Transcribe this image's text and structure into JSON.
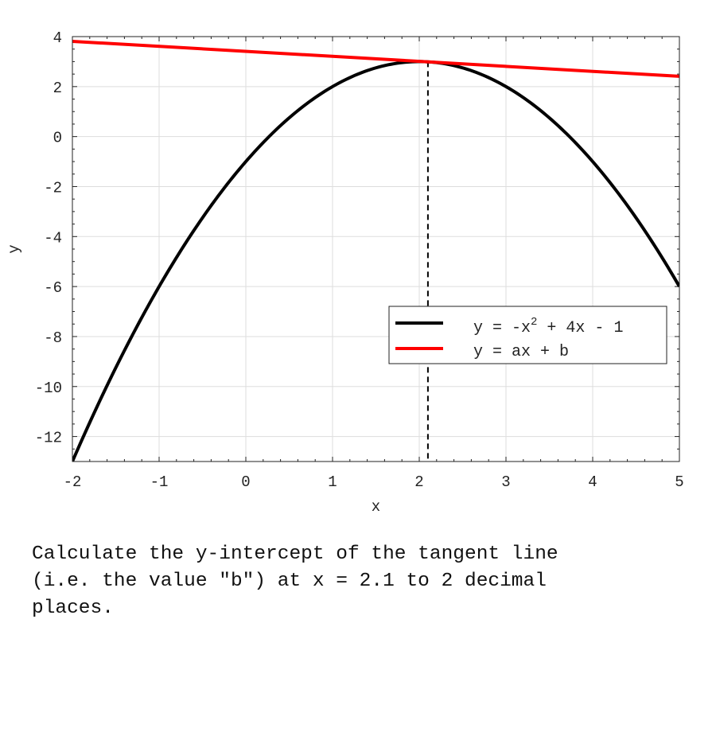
{
  "chart_data": {
    "type": "line",
    "title": "",
    "xlabel": "x",
    "ylabel": "y",
    "xlim": [
      -2,
      5
    ],
    "ylim": [
      -13,
      4
    ],
    "xticks": [
      "-2",
      "-1",
      "0",
      "1",
      "2",
      "3",
      "4",
      "5"
    ],
    "yticks": [
      "4",
      "2",
      "0",
      "-2",
      "-4",
      "-6",
      "-8",
      "-10",
      "-12"
    ],
    "xtick_values": [
      -2,
      -1,
      0,
      1,
      2,
      3,
      4,
      5
    ],
    "ytick_values": [
      4,
      2,
      0,
      -2,
      -4,
      -6,
      -8,
      -10,
      -12
    ],
    "grid": true,
    "legend_position": "center-right",
    "series": [
      {
        "name": "y = -x² + 4x - 1",
        "legend_base": "y = -x",
        "legend_sup": "2",
        "legend_rest": " + 4x - 1",
        "color": "#000000",
        "x": [
          -2,
          -1.5,
          -1,
          -0.5,
          0,
          0.5,
          1,
          1.5,
          2,
          2.5,
          3,
          3.5,
          4,
          4.5,
          5
        ],
        "y": [
          -13,
          -9.25,
          -6,
          -3.25,
          -1,
          0.75,
          2,
          2.75,
          3,
          2.75,
          2,
          0.75,
          -1,
          -3.25,
          -6
        ]
      },
      {
        "name": "y = ax + b",
        "color": "#ff0000",
        "x": [
          -2,
          5
        ],
        "y": [
          3.81,
          2.41
        ]
      }
    ],
    "annotations": [
      {
        "type": "vline",
        "x": 2.1,
        "style": "dashed",
        "color": "#000000"
      }
    ]
  },
  "question": {
    "text": "Calculate the y-intercept of the tangent line\n(i.e. the value \"b\") at x = 2.1 to 2 decimal\nplaces."
  }
}
